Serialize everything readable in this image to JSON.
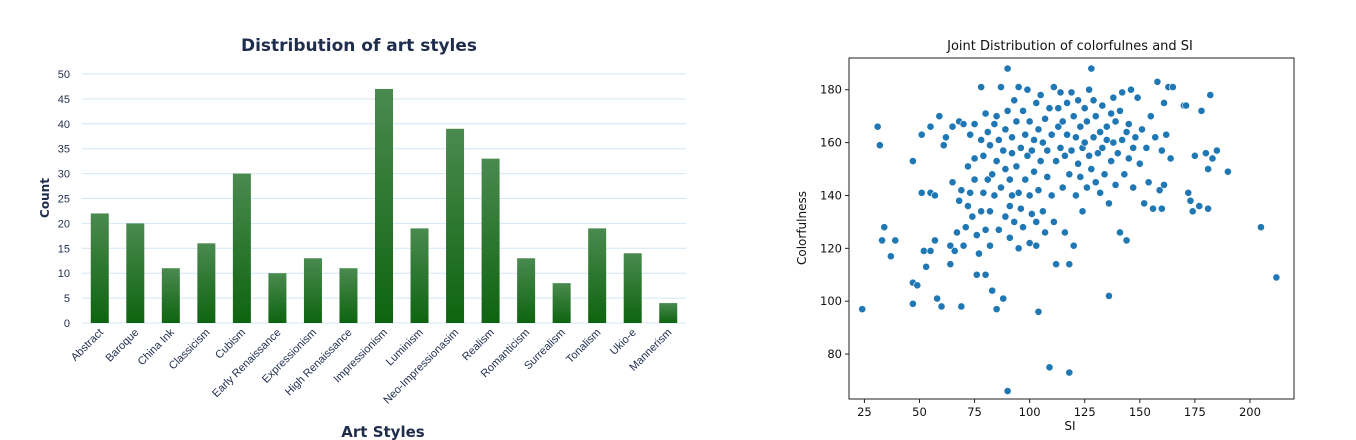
{
  "chart_data": [
    {
      "type": "bar",
      "title": "Distribution of art styles",
      "xlabel": "Art Styles",
      "ylabel": "Count",
      "ylim": [
        0,
        50
      ],
      "yticks": [
        0,
        5,
        10,
        15,
        20,
        25,
        30,
        35,
        40,
        45,
        50
      ],
      "categories": [
        "Abstract",
        "Baroque",
        "China Ink",
        "Classicism",
        "Cubism",
        "Early Renaissance",
        "Expressionism",
        "High Renaissance",
        "Impressionism",
        "Luminism",
        "Neo-Impressionasim",
        "Realism",
        "Romanticism",
        "Surrealism",
        "Tonalism",
        "Ukio-e",
        "Mannerism"
      ],
      "values": [
        22,
        20,
        11,
        16,
        30,
        10,
        13,
        11,
        47,
        19,
        39,
        33,
        13,
        8,
        19,
        14,
        4
      ],
      "grid": true,
      "colors": {
        "bar_top": "#4a8a4f",
        "bar_bottom": "#0e6410",
        "grid": "#d4e6f4",
        "text": "#1f2d4d"
      }
    },
    {
      "type": "scatter",
      "title": "Joint Distribution of colorfulnes and SI",
      "xlabel": "SI",
      "ylabel": "Colorfulness",
      "xlim": [
        18,
        220
      ],
      "ylim": [
        63,
        192
      ],
      "xticks": [
        25,
        50,
        75,
        100,
        125,
        150,
        175,
        200
      ],
      "yticks": [
        80,
        100,
        120,
        140,
        160,
        180
      ],
      "grid": false,
      "colors": {
        "point": "#1f77b4",
        "point_edge": "#ffffff"
      },
      "points": [
        [
          24,
          97
        ],
        [
          31,
          166
        ],
        [
          32,
          159
        ],
        [
          33,
          123
        ],
        [
          34,
          128
        ],
        [
          37,
          117
        ],
        [
          39,
          123
        ],
        [
          47,
          153
        ],
        [
          47,
          99
        ],
        [
          47,
          107
        ],
        [
          49,
          106
        ],
        [
          51,
          163
        ],
        [
          51,
          141
        ],
        [
          52,
          119
        ],
        [
          53,
          113
        ],
        [
          55,
          141
        ],
        [
          55,
          119
        ],
        [
          55,
          166
        ],
        [
          57,
          123
        ],
        [
          57,
          140
        ],
        [
          58,
          101
        ],
        [
          59,
          170
        ],
        [
          60,
          98
        ],
        [
          61,
          159
        ],
        [
          62,
          162
        ],
        [
          64,
          114
        ],
        [
          64,
          121
        ],
        [
          65,
          145
        ],
        [
          65,
          166
        ],
        [
          66,
          119
        ],
        [
          67,
          126
        ],
        [
          68,
          138
        ],
        [
          68,
          168
        ],
        [
          69,
          142
        ],
        [
          69,
          98
        ],
        [
          70,
          121
        ],
        [
          70,
          167
        ],
        [
          71,
          128
        ],
        [
          72,
          151
        ],
        [
          72,
          136
        ],
        [
          73,
          141
        ],
        [
          73,
          163
        ],
        [
          74,
          132
        ],
        [
          75,
          154
        ],
        [
          75,
          167
        ],
        [
          75,
          146
        ],
        [
          76,
          125
        ],
        [
          76,
          110
        ],
        [
          77,
          118
        ],
        [
          78,
          134
        ],
        [
          78,
          181
        ],
        [
          78,
          161
        ],
        [
          79,
          141
        ],
        [
          79,
          155
        ],
        [
          80,
          127
        ],
        [
          80,
          110
        ],
        [
          80,
          171
        ],
        [
          81,
          146
        ],
        [
          81,
          164
        ],
        [
          82,
          121
        ],
        [
          82,
          159
        ],
        [
          82,
          134
        ],
        [
          83,
          104
        ],
        [
          83,
          148
        ],
        [
          84,
          167
        ],
        [
          84,
          140
        ],
        [
          85,
          97
        ],
        [
          85,
          170
        ],
        [
          85,
          153
        ],
        [
          86,
          161
        ],
        [
          86,
          127
        ],
        [
          87,
          181
        ],
        [
          87,
          143
        ],
        [
          88,
          157
        ],
        [
          88,
          101
        ],
        [
          89,
          165
        ],
        [
          89,
          132
        ],
        [
          89,
          150
        ],
        [
          90,
          172
        ],
        [
          90,
          66
        ],
        [
          90,
          188
        ],
        [
          91,
          146
        ],
        [
          91,
          136
        ],
        [
          91,
          124
        ],
        [
          92,
          162
        ],
        [
          92,
          156
        ],
        [
          92,
          140
        ],
        [
          93,
          176
        ],
        [
          93,
          130
        ],
        [
          94,
          168
        ],
        [
          94,
          151
        ],
        [
          95,
          141
        ],
        [
          95,
          181
        ],
        [
          95,
          120
        ],
        [
          96,
          158
        ],
        [
          96,
          135
        ],
        [
          97,
          172
        ],
        [
          97,
          128
        ],
        [
          98,
          163
        ],
        [
          98,
          146
        ],
        [
          99,
          180
        ],
        [
          99,
          155
        ],
        [
          100,
          122
        ],
        [
          100,
          140
        ],
        [
          100,
          168
        ],
        [
          101,
          157
        ],
        [
          101,
          133
        ],
        [
          102,
          161
        ],
        [
          102,
          149
        ],
        [
          103,
          121
        ],
        [
          103,
          175
        ],
        [
          103,
          130
        ],
        [
          104,
          165
        ],
        [
          104,
          142
        ],
        [
          104,
          96
        ],
        [
          105,
          153
        ],
        [
          105,
          178
        ],
        [
          106,
          160
        ],
        [
          106,
          134
        ],
        [
          107,
          169
        ],
        [
          107,
          126
        ],
        [
          108,
          147
        ],
        [
          108,
          157
        ],
        [
          109,
          75
        ],
        [
          109,
          173
        ],
        [
          110,
          163
        ],
        [
          110,
          140
        ],
        [
          111,
          130
        ],
        [
          111,
          181
        ],
        [
          112,
          153
        ],
        [
          112,
          114
        ],
        [
          113,
          166
        ],
        [
          113,
          173
        ],
        [
          114,
          158
        ],
        [
          114,
          179
        ],
        [
          115,
          143
        ],
        [
          115,
          168
        ],
        [
          116,
          155
        ],
        [
          116,
          126
        ],
        [
          117,
          175
        ],
        [
          117,
          163
        ],
        [
          118,
          148
        ],
        [
          118,
          114
        ],
        [
          118,
          73
        ],
        [
          119,
          179
        ],
        [
          119,
          157
        ],
        [
          120,
          170
        ],
        [
          120,
          121
        ],
        [
          121,
          162
        ],
        [
          121,
          140
        ],
        [
          122,
          176
        ],
        [
          122,
          152
        ],
        [
          123,
          166
        ],
        [
          123,
          147
        ],
        [
          124,
          158
        ],
        [
          124,
          134
        ],
        [
          125,
          173
        ],
        [
          125,
          160
        ],
        [
          126,
          143
        ],
        [
          126,
          168
        ],
        [
          127,
          180
        ],
        [
          127,
          155
        ],
        [
          128,
          188
        ],
        [
          128,
          150
        ],
        [
          129,
          176
        ],
        [
          129,
          162
        ],
        [
          130,
          145
        ],
        [
          130,
          170
        ],
        [
          131,
          156
        ],
        [
          132,
          164
        ],
        [
          132,
          141
        ],
        [
          133,
          158
        ],
        [
          133,
          174
        ],
        [
          134,
          148
        ],
        [
          135,
          161
        ],
        [
          135,
          166
        ],
        [
          136,
          137
        ],
        [
          136,
          102
        ],
        [
          137,
          171
        ],
        [
          137,
          153
        ],
        [
          138,
          177
        ],
        [
          138,
          160
        ],
        [
          139,
          144
        ],
        [
          139,
          168
        ],
        [
          140,
          156
        ],
        [
          141,
          126
        ],
        [
          141,
          172
        ],
        [
          142,
          161
        ],
        [
          142,
          179
        ],
        [
          143,
          148
        ],
        [
          144,
          164
        ],
        [
          144,
          123
        ],
        [
          145,
          167
        ],
        [
          145,
          154
        ],
        [
          146,
          180
        ],
        [
          147,
          158
        ],
        [
          147,
          143
        ],
        [
          148,
          162
        ],
        [
          149,
          177
        ],
        [
          150,
          152
        ],
        [
          151,
          165
        ],
        [
          152,
          137
        ],
        [
          153,
          158
        ],
        [
          154,
          145
        ],
        [
          155,
          170
        ],
        [
          156,
          135
        ],
        [
          157,
          162
        ],
        [
          158,
          183
        ],
        [
          159,
          142
        ],
        [
          160,
          135
        ],
        [
          160,
          157
        ],
        [
          161,
          175
        ],
        [
          161,
          144
        ],
        [
          162,
          163
        ],
        [
          163,
          181
        ],
        [
          164,
          154
        ],
        [
          165,
          181
        ],
        [
          170,
          174
        ],
        [
          171,
          174
        ],
        [
          172,
          141
        ],
        [
          173,
          138
        ],
        [
          174,
          134
        ],
        [
          175,
          155
        ],
        [
          177,
          136
        ],
        [
          178,
          172
        ],
        [
          180,
          156
        ],
        [
          181,
          150
        ],
        [
          181,
          135
        ],
        [
          182,
          178
        ],
        [
          183,
          154
        ],
        [
          185,
          157
        ],
        [
          190,
          149
        ],
        [
          205,
          128
        ],
        [
          212,
          109
        ]
      ]
    }
  ]
}
